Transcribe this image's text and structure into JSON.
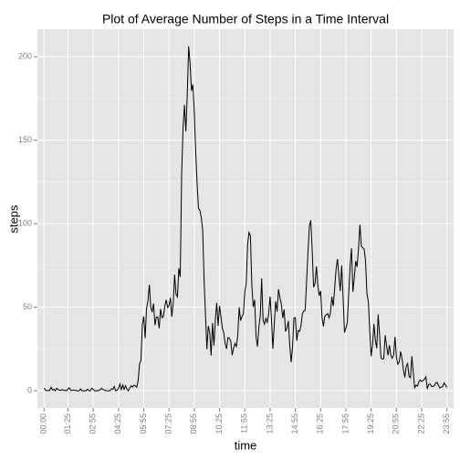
{
  "chart_data": {
    "type": "line",
    "title": "Plot of Average Number of Steps in a Time Interval",
    "x_label": "time",
    "y_label": "steps",
    "color": "#000000",
    "grid": true,
    "ylim": [
      -10.3,
      216.5
    ],
    "yticks": [
      0,
      50,
      100,
      150,
      200
    ],
    "categories": [
      "00:00",
      null,
      null,
      null,
      null,
      null,
      null,
      null,
      null,
      null,
      null,
      null,
      null,
      null,
      null,
      null,
      null,
      "01:25",
      null,
      null,
      null,
      null,
      null,
      null,
      null,
      null,
      null,
      null,
      null,
      null,
      null,
      null,
      null,
      null,
      null,
      "02:55",
      null,
      null,
      null,
      null,
      null,
      null,
      null,
      null,
      null,
      null,
      null,
      null,
      null,
      null,
      null,
      null,
      null,
      "04:25",
      null,
      null,
      null,
      null,
      null,
      null,
      null,
      null,
      null,
      null,
      null,
      null,
      null,
      null,
      null,
      null,
      null,
      "05:55",
      null,
      null,
      null,
      null,
      null,
      null,
      null,
      null,
      null,
      null,
      null,
      null,
      null,
      null,
      null,
      null,
      null,
      "07:25",
      null,
      null,
      null,
      null,
      null,
      null,
      null,
      null,
      null,
      null,
      null,
      null,
      null,
      null,
      null,
      null,
      null,
      "08:55",
      null,
      null,
      null,
      null,
      null,
      null,
      null,
      null,
      null,
      null,
      null,
      null,
      null,
      null,
      null,
      null,
      null,
      "10:25",
      null,
      null,
      null,
      null,
      null,
      null,
      null,
      null,
      null,
      null,
      null,
      null,
      null,
      null,
      null,
      null,
      null,
      "11:55",
      null,
      null,
      null,
      null,
      null,
      null,
      null,
      null,
      null,
      null,
      null,
      null,
      null,
      null,
      null,
      null,
      null,
      "13:25",
      null,
      null,
      null,
      null,
      null,
      null,
      null,
      null,
      null,
      null,
      null,
      null,
      null,
      null,
      null,
      null,
      null,
      "14:55",
      null,
      null,
      null,
      null,
      null,
      null,
      null,
      null,
      null,
      null,
      null,
      null,
      null,
      null,
      null,
      null,
      null,
      "16:25",
      null,
      null,
      null,
      null,
      null,
      null,
      null,
      null,
      null,
      null,
      null,
      null,
      null,
      null,
      null,
      null,
      null,
      "17:55",
      null,
      null,
      null,
      null,
      null,
      null,
      null,
      null,
      null,
      null,
      null,
      null,
      null,
      null,
      null,
      null,
      null,
      "19:25",
      null,
      null,
      null,
      null,
      null,
      null,
      null,
      null,
      null,
      null,
      null,
      null,
      null,
      null,
      null,
      null,
      null,
      "20:55",
      null,
      null,
      null,
      null,
      null,
      null,
      null,
      null,
      null,
      null,
      null,
      null,
      null,
      null,
      null,
      null,
      null,
      "22:25",
      null,
      null,
      null,
      null,
      null,
      null,
      null,
      null,
      null,
      null,
      null,
      null,
      null,
      null,
      null,
      null,
      null,
      "23:55"
    ],
    "values": [
      1.7,
      0.3,
      0.1,
      0.2,
      0.1,
      2.1,
      0.5,
      0.9,
      0,
      1.5,
      0.8,
      0.3,
      0.3,
      0.7,
      0.2,
      0.3,
      0,
      1.1,
      1.8,
      0.2,
      0.2,
      0.4,
      0.3,
      0,
      0,
      0,
      1.1,
      0,
      0,
      0.1,
      0,
      0.9,
      0,
      0,
      1.6,
      0.9,
      0,
      0,
      0,
      0.2,
      0.6,
      1.6,
      0.6,
      0.5,
      0.1,
      0,
      0,
      0.1,
      1.2,
      0.9,
      2.6,
      0,
      0.3,
      1.4,
      4.1,
      0.7,
      3.5,
      0.8,
      3.1,
      1.1,
      0,
      1.6,
      3,
      2.2,
      3.3,
      3,
      2.1,
      6.1,
      16,
      18.3,
      39.5,
      44.5,
      31.5,
      49.3,
      53.8,
      63.5,
      50,
      47.1,
      52.2,
      39.3,
      44,
      44.2,
      37.4,
      49,
      43.8,
      44.4,
      50.5,
      54.5,
      49.9,
      51,
      55.7,
      44.3,
      52.3,
      69.5,
      57.8,
      56.2,
      73.4,
      68.2,
      129.4,
      157.5,
      171.2,
      155.4,
      177.3,
      206.2,
      195.9,
      179.6,
      183.4,
      167,
      143.5,
      124,
      109.1,
      108.1,
      103.7,
      96,
      66.2,
      45.2,
      24.8,
      38.8,
      35,
      21.1,
      40.6,
      27,
      42.4,
      52.7,
      38.9,
      50.8,
      44.3,
      37.4,
      34.7,
      28.3,
      25.1,
      31.9,
      31.4,
      29.7,
      21.3,
      25.5,
      28.4,
      26.5,
      33.4,
      50,
      42,
      44.6,
      46,
      59.2,
      63.9,
      87.7,
      94.8,
      92.8,
      63.4,
      50.2,
      54.5,
      32.4,
      26.5,
      37.7,
      45.1,
      67.3,
      42.3,
      39.9,
      43.3,
      41,
      46.2,
      56.4,
      42.8,
      25.1,
      40,
      53.5,
      47.3,
      60.8,
      55.7,
      52,
      43.6,
      48.7,
      35.5,
      37.5,
      41.8,
      27.5,
      17.1,
      26.1,
      43.6,
      43.8,
      30,
      36.1,
      35.5,
      38.8,
      46,
      47.8,
      48.1,
      65.3,
      82.9,
      98.7,
      102.1,
      84,
      62.1,
      64.1,
      74.5,
      63.2,
      56.9,
      59.8,
      43.9,
      38.6,
      44.7,
      45.5,
      46.2,
      43.7,
      46.6,
      56.3,
      50.7,
      61.2,
      72.7,
      78.9,
      68.9,
      59.7,
      75.1,
      56.5,
      34.8,
      37.5,
      40.7,
      58,
      74.7,
      85.3,
      59.3,
      67.8,
      77.7,
      74.2,
      85.3,
      99.5,
      86.6,
      85.6,
      84.9,
      77.8,
      58,
      53.4,
      36.3,
      20.7,
      27.4,
      40,
      30.2,
      25.5,
      45.7,
      33.5,
      19.6,
      19,
      19.3,
      33.3,
      26.8,
      21.2,
      27.3,
      21.3,
      19.5,
      21.3,
      32.3,
      20.2,
      15.9,
      17.2,
      23.5,
      19.2,
      12.5,
      8,
      14.7,
      16.3,
      8.7,
      7.8,
      20.7,
      11.1,
      1.8,
      3.4,
      2.8,
      5.4,
      6.5,
      5.5,
      6.2,
      6.9,
      8.4,
      1.1,
      3.8,
      4.1,
      2.6,
      2.6,
      3.1,
      4.7,
      5,
      3.1,
      1.7,
      2.2,
      2.5,
      4.7,
      3.4,
      2
    ]
  }
}
